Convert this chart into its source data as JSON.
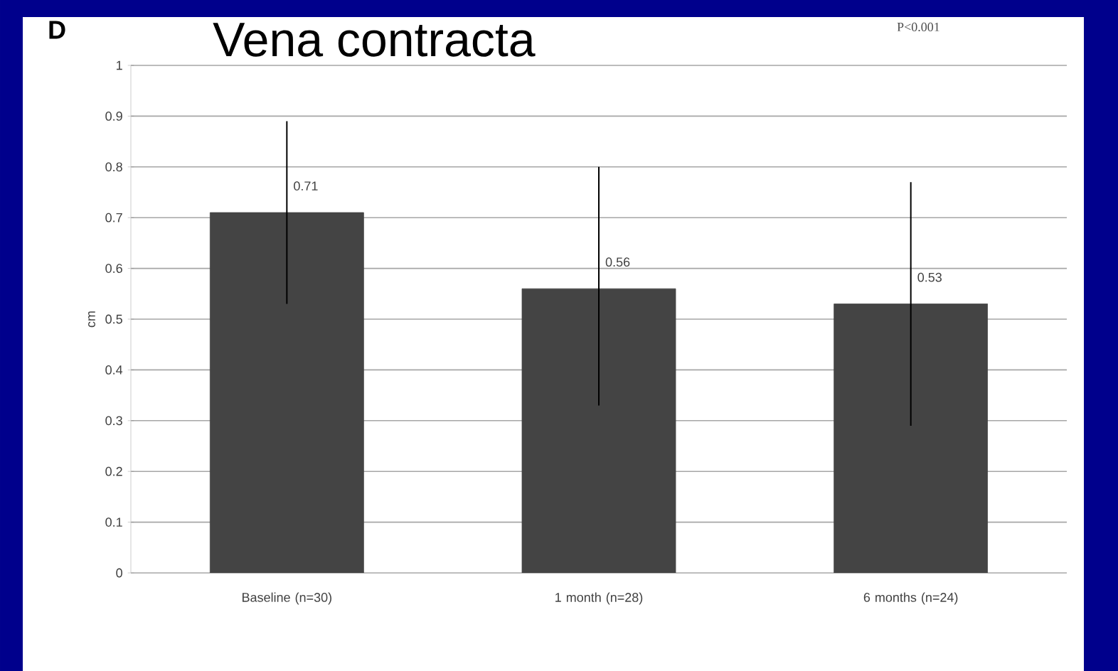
{
  "chart_data": {
    "type": "bar",
    "title": "Vena contracta",
    "ylabel": "cm",
    "categories": [
      "Baseline (n=30)",
      "1 month (n=28)",
      "6 months (n=24)"
    ],
    "values": [
      0.71,
      0.56,
      0.53
    ],
    "color": "#444444",
    "errors": [
      [
        0.53,
        0.89
      ],
      [
        0.33,
        0.8
      ],
      [
        0.29,
        0.77
      ]
    ],
    "ylim": [
      0,
      1
    ],
    "yticks": [
      0,
      0.1,
      0.2,
      0.3,
      0.4,
      0.5,
      0.6,
      0.7,
      0.8,
      0.9,
      1
    ],
    "grid": "y",
    "data_labels": true,
    "annotations": [
      "D",
      "P<0.001"
    ]
  }
}
